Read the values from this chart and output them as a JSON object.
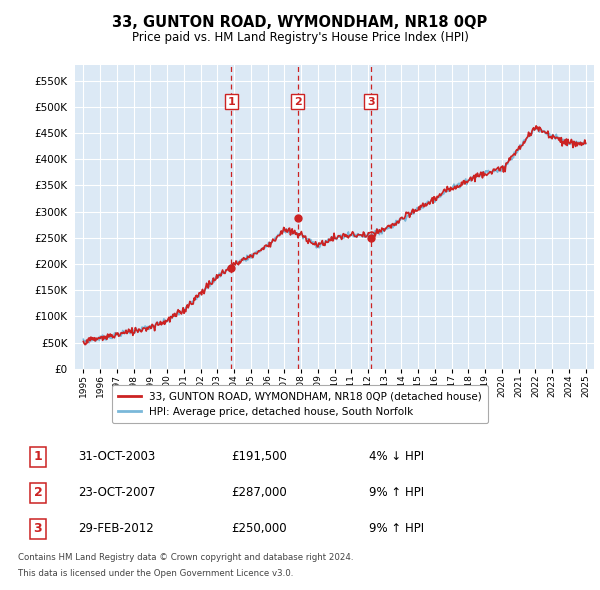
{
  "title": "33, GUNTON ROAD, WYMONDHAM, NR18 0QP",
  "subtitle": "Price paid vs. HM Land Registry's House Price Index (HPI)",
  "background_color": "#dce9f5",
  "plot_bg_color": "#dce9f5",
  "grid_color": "#ffffff",
  "yticks": [
    0,
    50000,
    100000,
    150000,
    200000,
    250000,
    300000,
    350000,
    400000,
    450000,
    500000,
    550000
  ],
  "ytick_labels": [
    "£0",
    "£50K",
    "£100K",
    "£150K",
    "£200K",
    "£250K",
    "£300K",
    "£350K",
    "£400K",
    "£450K",
    "£500K",
    "£550K"
  ],
  "hpi_color": "#7ab8d9",
  "price_color": "#cc2222",
  "marker_color": "#cc2222",
  "vline_color": "#cc2222",
  "sale_label_color": "#cc2222",
  "transactions": [
    {
      "num": 1,
      "date_x": 2003.83,
      "price": 191500,
      "vline_x": 2003.83
    },
    {
      "num": 2,
      "date_x": 2007.81,
      "price": 287000,
      "vline_x": 2007.81
    },
    {
      "num": 3,
      "date_x": 2012.17,
      "price": 250000,
      "vline_x": 2012.17
    }
  ],
  "legend_entries": [
    {
      "label": "33, GUNTON ROAD, WYMONDHAM, NR18 0QP (detached house)",
      "color": "#cc2222"
    },
    {
      "label": "HPI: Average price, detached house, South Norfolk",
      "color": "#7ab8d9"
    }
  ],
  "table_rows": [
    {
      "num": "1",
      "date": "31-OCT-2003",
      "price": "£191,500",
      "hpi": "4% ↓ HPI"
    },
    {
      "num": "2",
      "date": "23-OCT-2007",
      "price": "£287,000",
      "hpi": "9% ↑ HPI"
    },
    {
      "num": "3",
      "date": "29-FEB-2012",
      "price": "£250,000",
      "hpi": "9% ↑ HPI"
    }
  ],
  "footer_line1": "Contains HM Land Registry data © Crown copyright and database right 2024.",
  "footer_line2": "This data is licensed under the Open Government Licence v3.0.",
  "xlim": [
    1994.5,
    2025.5
  ],
  "ylim": [
    0,
    580000
  ],
  "xtick_years": [
    1995,
    1996,
    1997,
    1998,
    1999,
    2000,
    2001,
    2002,
    2003,
    2004,
    2005,
    2006,
    2007,
    2008,
    2009,
    2010,
    2011,
    2012,
    2013,
    2014,
    2015,
    2016,
    2017,
    2018,
    2019,
    2020,
    2021,
    2022,
    2023,
    2024,
    2025
  ]
}
